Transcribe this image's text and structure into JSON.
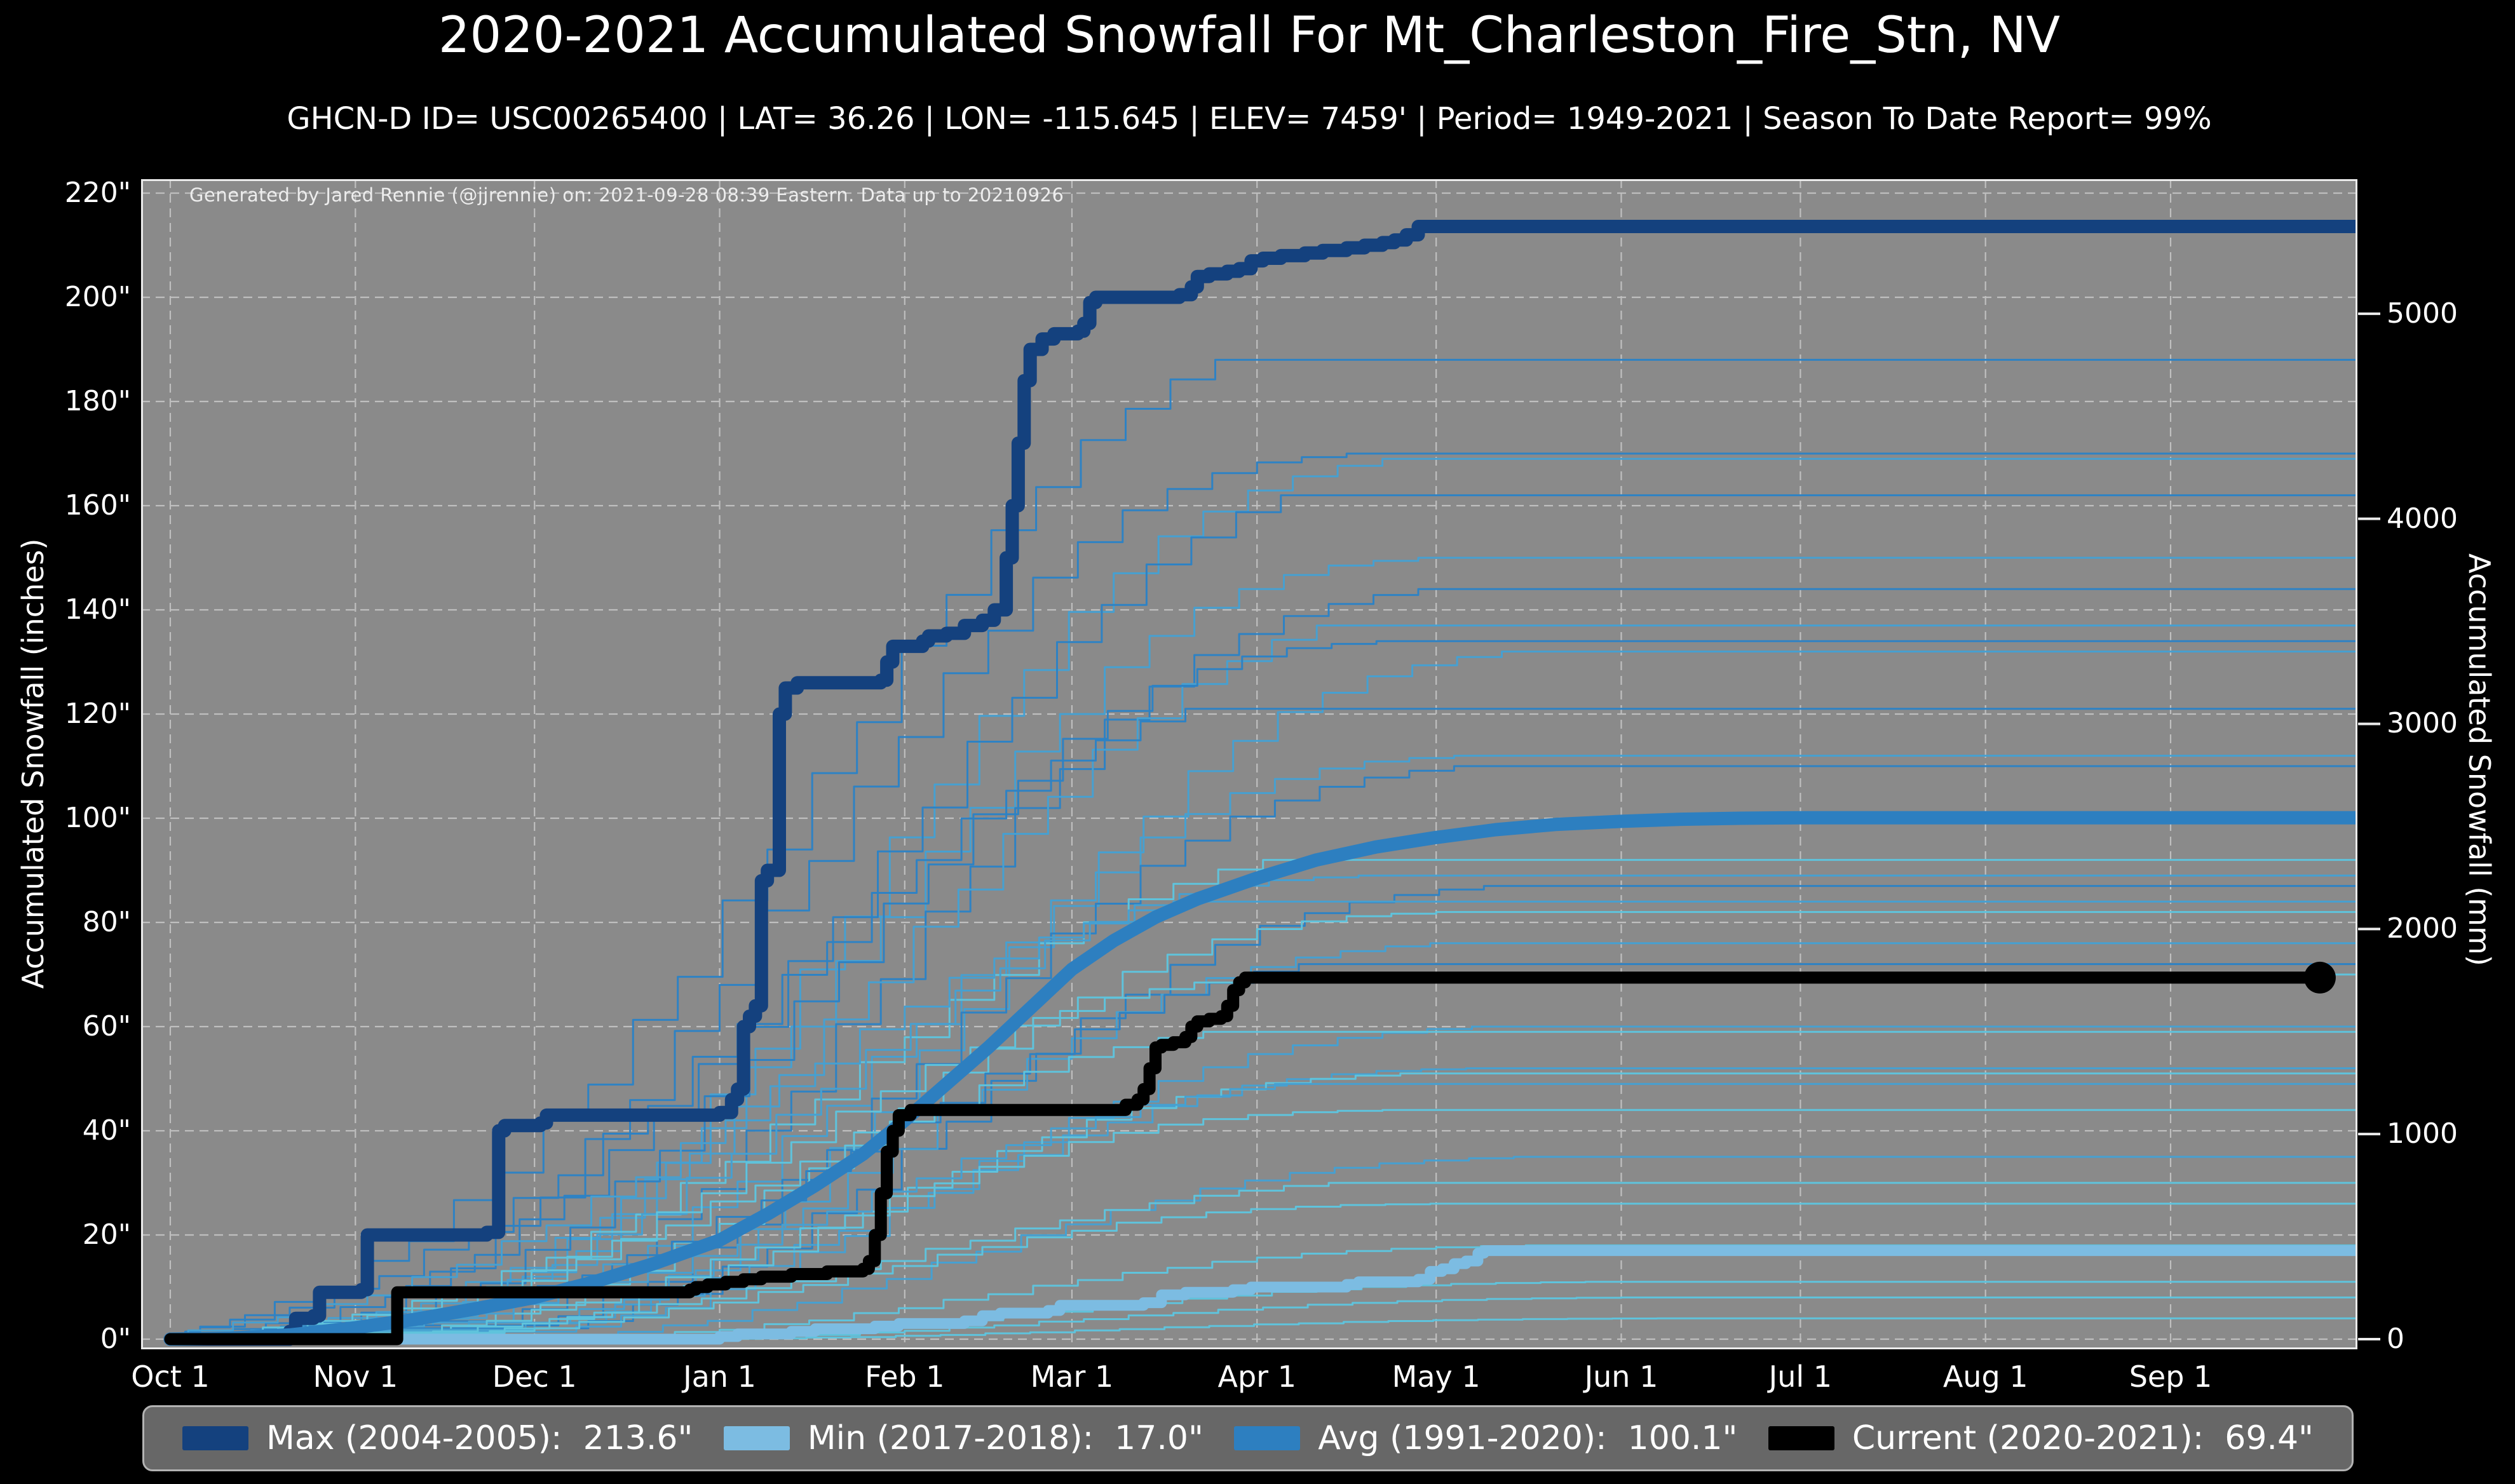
{
  "chart_data": {
    "type": "line",
    "title": "2020-2021 Accumulated Snowfall For Mt_Charleston_Fire_Stn, NV",
    "subtitle": "GHCN-D ID= USC00265400 | LAT= 36.26 | LON= -115.645 | ELEV= 7459' | Period= 1949-2021 | Season To Date Report= 99%",
    "attribution": "Generated by Jared Rennie (@jjrennie) on: 2021-09-28 08:39 Eastern. Data up to 20210926",
    "x_unit": "days_since_Oct_1",
    "x_range_days": [
      0,
      366
    ],
    "ylim_inches": [
      0,
      220
    ],
    "grid": true,
    "axes": {
      "left": {
        "label": "Accumulated Snowfall (inches)",
        "ticks": [
          [
            0,
            "0\""
          ],
          [
            20,
            "20\""
          ],
          [
            40,
            "40\""
          ],
          [
            60,
            "60\""
          ],
          [
            80,
            "80\""
          ],
          [
            100,
            "100\""
          ],
          [
            120,
            "120\""
          ],
          [
            140,
            "140\""
          ],
          [
            160,
            "160\""
          ],
          [
            180,
            "180\""
          ],
          [
            200,
            "200\""
          ],
          [
            220,
            "220\""
          ]
        ]
      },
      "right": {
        "label": "Accumulated Snowfall (mm)",
        "ticks": [
          [
            0,
            "0"
          ],
          [
            1000,
            "1000"
          ],
          [
            2000,
            "2000"
          ],
          [
            3000,
            "3000"
          ],
          [
            4000,
            "4000"
          ],
          [
            5000,
            "5000"
          ]
        ],
        "mm_per_inch": 25.4
      },
      "bottom": {
        "ticks": [
          [
            0,
            "Oct 1"
          ],
          [
            31,
            "Nov 1"
          ],
          [
            61,
            "Dec 1"
          ],
          [
            92,
            "Jan 1"
          ],
          [
            123,
            "Feb 1"
          ],
          [
            151,
            "Mar 1"
          ],
          [
            182,
            "Apr 1"
          ],
          [
            212,
            "May 1"
          ],
          [
            243,
            "Jun 1"
          ],
          [
            273,
            "Jul 1"
          ],
          [
            304,
            "Aug 1"
          ],
          [
            335,
            "Sep 1"
          ]
        ]
      }
    },
    "colors": {
      "background": "#000000",
      "plot_background": "#8a8a8a",
      "gridline": "#c9c9c9",
      "spine": "#ebebeb",
      "max": "#14417e",
      "min": "#7cbce2",
      "avg": "#2d7fc0",
      "current": "#000000",
      "season_shades": [
        "#2e82c4",
        "#46a0d1",
        "#5fc3dc"
      ]
    },
    "legend": {
      "items": [
        {
          "key": "max",
          "label": "Max (2004-2005):  213.6\"",
          "color": "#14417e"
        },
        {
          "key": "min",
          "label": "Min (2017-2018):  17.0\"",
          "color": "#7cbce2"
        },
        {
          "key": "avg",
          "label": "Avg (1991-2020):  100.1\"",
          "color": "#2d7fc0"
        },
        {
          "key": "current",
          "label": "Current (2020-2021):  69.4\"",
          "color": "#000000"
        }
      ]
    },
    "series": [
      {
        "name": "Max (2004-2005)",
        "total_inches": 213.6,
        "style": "step",
        "width": 21,
        "color_key": "max",
        "points": [
          [
            0,
            0
          ],
          [
            18,
            0
          ],
          [
            20,
            1.5
          ],
          [
            21,
            4
          ],
          [
            24,
            4.5
          ],
          [
            25,
            9
          ],
          [
            32,
            9.5
          ],
          [
            33,
            20
          ],
          [
            53,
            20.5
          ],
          [
            55,
            40
          ],
          [
            56,
            41
          ],
          [
            62,
            41.5
          ],
          [
            63,
            43
          ],
          [
            92,
            43.5
          ],
          [
            94,
            46
          ],
          [
            95,
            48
          ],
          [
            96,
            60
          ],
          [
            97,
            62
          ],
          [
            98,
            64
          ],
          [
            99,
            88
          ],
          [
            100,
            90
          ],
          [
            102,
            120
          ],
          [
            103,
            125
          ],
          [
            105,
            126
          ],
          [
            119,
            126.5
          ],
          [
            120,
            130
          ],
          [
            121,
            133
          ],
          [
            126,
            134
          ],
          [
            127,
            135
          ],
          [
            130,
            135.5
          ],
          [
            133,
            137
          ],
          [
            136,
            138
          ],
          [
            138,
            140
          ],
          [
            140,
            150
          ],
          [
            141,
            160
          ],
          [
            142,
            172
          ],
          [
            143,
            184
          ],
          [
            144,
            190
          ],
          [
            146,
            192
          ],
          [
            148,
            193
          ],
          [
            152,
            193.5
          ],
          [
            153,
            195
          ],
          [
            154,
            199
          ],
          [
            155,
            200
          ],
          [
            169,
            200.5
          ],
          [
            171,
            202
          ],
          [
            172,
            204
          ],
          [
            174,
            204.5
          ],
          [
            177,
            205
          ],
          [
            179,
            205.5
          ],
          [
            181,
            207
          ],
          [
            183,
            207.5
          ],
          [
            186,
            208
          ],
          [
            190,
            208.5
          ],
          [
            193,
            209
          ],
          [
            197,
            209.5
          ],
          [
            200,
            210
          ],
          [
            203,
            210.5
          ],
          [
            205,
            211
          ],
          [
            207,
            212
          ],
          [
            209,
            213.6
          ],
          [
            366,
            213.6
          ]
        ]
      },
      {
        "name": "Min (2017-2018)",
        "total_inches": 17.0,
        "style": "step",
        "width": 17,
        "color_key": "min",
        "points": [
          [
            0,
            0
          ],
          [
            90,
            0
          ],
          [
            92,
            0.5
          ],
          [
            95,
            1
          ],
          [
            104,
            1.5
          ],
          [
            108,
            2
          ],
          [
            118,
            2.5
          ],
          [
            122,
            3
          ],
          [
            133,
            3.5
          ],
          [
            136,
            4.5
          ],
          [
            139,
            5
          ],
          [
            147,
            5.5
          ],
          [
            149,
            6.5
          ],
          [
            163,
            7
          ],
          [
            166,
            8.5
          ],
          [
            170,
            9
          ],
          [
            178,
            9.5
          ],
          [
            181,
            10
          ],
          [
            197,
            10.5
          ],
          [
            199,
            11
          ],
          [
            209,
            11.5
          ],
          [
            211,
            13
          ],
          [
            213,
            13.5
          ],
          [
            215,
            14.5
          ],
          [
            217,
            15
          ],
          [
            219,
            16.5
          ],
          [
            220,
            17
          ],
          [
            366,
            17
          ]
        ]
      },
      {
        "name": "Avg (1991-2020)",
        "total_inches": 100.1,
        "style": "smooth",
        "width": 21,
        "color_key": "avg",
        "points": [
          [
            0,
            0
          ],
          [
            10,
            0.2
          ],
          [
            20,
            0.8
          ],
          [
            31,
            2.2
          ],
          [
            41,
            3.8
          ],
          [
            51,
            5.8
          ],
          [
            61,
            8
          ],
          [
            71,
            11
          ],
          [
            81,
            14.5
          ],
          [
            92,
            19
          ],
          [
            100,
            24
          ],
          [
            108,
            29.5
          ],
          [
            116,
            35.5
          ],
          [
            123,
            42
          ],
          [
            130,
            49
          ],
          [
            137,
            56
          ],
          [
            144,
            63.5
          ],
          [
            151,
            71
          ],
          [
            158,
            76.5
          ],
          [
            165,
            81
          ],
          [
            172,
            84.5
          ],
          [
            182,
            88.5
          ],
          [
            192,
            92
          ],
          [
            202,
            94.5
          ],
          [
            212,
            96.3
          ],
          [
            222,
            97.8
          ],
          [
            232,
            98.8
          ],
          [
            243,
            99.4
          ],
          [
            253,
            99.8
          ],
          [
            263,
            100
          ],
          [
            273,
            100.1
          ],
          [
            366,
            100.1
          ]
        ]
      },
      {
        "name": "Current (2020-2021)",
        "total_inches": 69.4,
        "style": "step",
        "width": 19,
        "color_key": "current",
        "end_dot": true,
        "points": [
          [
            0,
            0
          ],
          [
            37,
            0
          ],
          [
            38,
            9
          ],
          [
            85,
            9
          ],
          [
            87,
            9.5
          ],
          [
            88,
            10
          ],
          [
            90,
            10.5
          ],
          [
            93,
            11
          ],
          [
            96,
            11.5
          ],
          [
            99,
            12
          ],
          [
            104,
            12.5
          ],
          [
            110,
            13
          ],
          [
            116,
            13.5
          ],
          [
            117,
            15
          ],
          [
            118,
            20
          ],
          [
            119,
            28
          ],
          [
            120,
            36
          ],
          [
            121,
            40
          ],
          [
            122,
            43
          ],
          [
            124,
            44
          ],
          [
            159,
            44
          ],
          [
            160,
            45
          ],
          [
            162,
            46
          ],
          [
            163,
            48
          ],
          [
            164,
            52
          ],
          [
            165,
            56
          ],
          [
            166,
            56.5
          ],
          [
            168,
            57
          ],
          [
            170,
            58
          ],
          [
            171,
            60
          ],
          [
            172,
            61
          ],
          [
            174,
            61.5
          ],
          [
            176,
            62
          ],
          [
            177,
            64
          ],
          [
            178,
            67
          ],
          [
            179,
            68.5
          ],
          [
            180,
            69.4
          ],
          [
            360,
            69.4
          ]
        ]
      }
    ],
    "background_seasons": {
      "note": "thin historical season curves (totals read at right edge)",
      "profiles": [
        {
          "days": [
            15,
            30,
            45,
            60,
            75,
            90,
            105,
            120,
            135,
            150,
            165,
            180
          ],
          "fracs": [
            0.02,
            0.05,
            0.1,
            0.17,
            0.26,
            0.37,
            0.5,
            0.63,
            0.76,
            0.87,
            0.95,
            1
          ]
        },
        {
          "days": [
            40,
            55,
            70,
            85,
            100,
            115,
            130,
            145,
            160,
            175,
            190,
            205
          ],
          "fracs": [
            0.03,
            0.08,
            0.16,
            0.27,
            0.4,
            0.54,
            0.68,
            0.8,
            0.9,
            0.96,
            0.99,
            1
          ]
        },
        {
          "days": [
            65,
            80,
            95,
            110,
            125,
            140,
            155,
            170,
            185,
            200,
            215,
            230
          ],
          "fracs": [
            0.04,
            0.1,
            0.2,
            0.33,
            0.48,
            0.63,
            0.76,
            0.87,
            0.94,
            0.98,
            1,
            1
          ]
        }
      ],
      "seasons": [
        {
          "total": 188,
          "profile": 0,
          "shift": -5,
          "shade": 0
        },
        {
          "total": 170,
          "profile": 1,
          "shift": -8,
          "shade": 0
        },
        {
          "total": 169,
          "profile": 2,
          "shift": -12,
          "shade": 1
        },
        {
          "total": 162,
          "profile": 0,
          "shift": 6,
          "shade": 0
        },
        {
          "total": 150,
          "profile": 1,
          "shift": 4,
          "shade": 1
        },
        {
          "total": 144,
          "profile": 2,
          "shift": -6,
          "shade": 0
        },
        {
          "total": 137,
          "profile": 0,
          "shift": 12,
          "shade": 1
        },
        {
          "total": 134,
          "profile": 1,
          "shift": -3,
          "shade": 0
        },
        {
          "total": 132,
          "profile": 2,
          "shift": 8,
          "shade": 1
        },
        {
          "total": 121,
          "profile": 0,
          "shift": -10,
          "shade": 0
        },
        {
          "total": 112,
          "profile": 1,
          "shift": 10,
          "shade": 1
        },
        {
          "total": 110,
          "profile": 2,
          "shift": 0,
          "shade": 0
        },
        {
          "total": 92,
          "profile": 0,
          "shift": 3,
          "shade": 2
        },
        {
          "total": 89,
          "profile": 1,
          "shift": -6,
          "shade": 1
        },
        {
          "total": 87,
          "profile": 2,
          "shift": 5,
          "shade": 0
        },
        {
          "total": 84,
          "profile": 0,
          "shift": -12,
          "shade": 1
        },
        {
          "total": 82,
          "profile": 1,
          "shift": 7,
          "shade": 2
        },
        {
          "total": 76,
          "profile": 2,
          "shift": -4,
          "shade": 1
        },
        {
          "total": 72,
          "profile": 0,
          "shift": 9,
          "shade": 0
        },
        {
          "total": 70,
          "profile": 1,
          "shift": -11,
          "shade": 2
        },
        {
          "total": 60,
          "profile": 2,
          "shift": 3,
          "shade": 1
        },
        {
          "total": 59,
          "profile": 0,
          "shift": -7,
          "shade": 2
        },
        {
          "total": 52,
          "profile": 1,
          "shift": 12,
          "shade": 1
        },
        {
          "total": 51,
          "profile": 2,
          "shift": -9,
          "shade": 2
        },
        {
          "total": 49,
          "profile": 0,
          "shift": 5,
          "shade": 1
        },
        {
          "total": 44,
          "profile": 1,
          "shift": -2,
          "shade": 2
        },
        {
          "total": 35,
          "profile": 2,
          "shift": 10,
          "shade": 1
        },
        {
          "total": 30,
          "profile": 0,
          "shift": 14,
          "shade": 2
        },
        {
          "total": 26,
          "profile": 1,
          "shift": 6,
          "shade": 2
        },
        {
          "total": 18,
          "profile": 2,
          "shift": 12,
          "shade": 2
        },
        {
          "total": 11,
          "profile": 2,
          "shift": 22,
          "shade": 2
        },
        {
          "total": 8,
          "profile": 2,
          "shift": 28,
          "shade": 2
        },
        {
          "total": 4,
          "profile": 2,
          "shift": 34,
          "shade": 2
        }
      ]
    }
  }
}
